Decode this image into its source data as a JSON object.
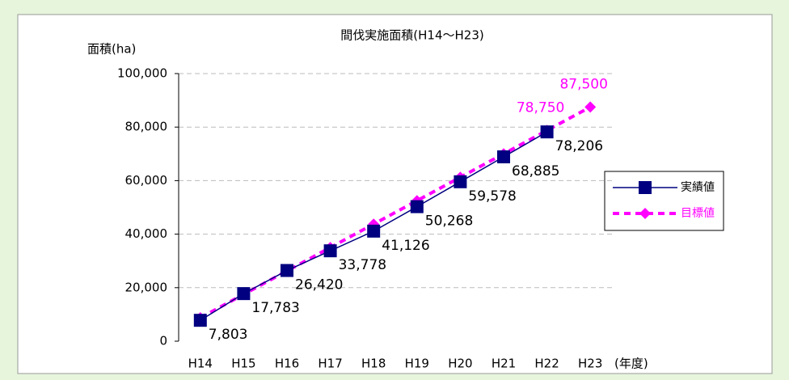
{
  "chart_data": {
    "type": "line",
    "title": "間伐実施面積(H14～H23)",
    "y_label": "面積(ha)",
    "x_label": "(年度)",
    "categories": [
      "H14",
      "H15",
      "H16",
      "H17",
      "H18",
      "H19",
      "H20",
      "H21",
      "H22",
      "H23"
    ],
    "series": [
      {
        "name": "実績値",
        "color": "#000080",
        "values": [
          7803,
          17783,
          26420,
          33778,
          41126,
          50268,
          59578,
          68885,
          78206,
          null
        ],
        "value_labels": [
          "7,803",
          "17,783",
          "26,420",
          "33,778",
          "41,126",
          "50,268",
          "59,578",
          "68,885",
          "78,206",
          null
        ]
      },
      {
        "name": "目標値",
        "color": "#ff00ff",
        "values": [
          8750,
          17500,
          26250,
          35000,
          43750,
          52500,
          61250,
          70000,
          78750,
          87500
        ],
        "value_labels": [
          null,
          null,
          null,
          null,
          null,
          null,
          null,
          null,
          "78,750",
          "87,500"
        ]
      }
    ],
    "ylim": [
      0,
      100000
    ],
    "yticks": [
      0,
      {
        "value": 20000,
        "label": "20,000"
      },
      {
        "value": 40000,
        "label": "40,000"
      },
      {
        "value": 60000,
        "label": "60,000"
      },
      {
        "value": 80000,
        "label": "80,000"
      },
      {
        "value": 100000,
        "label": "100,000"
      }
    ],
    "grid": true
  }
}
